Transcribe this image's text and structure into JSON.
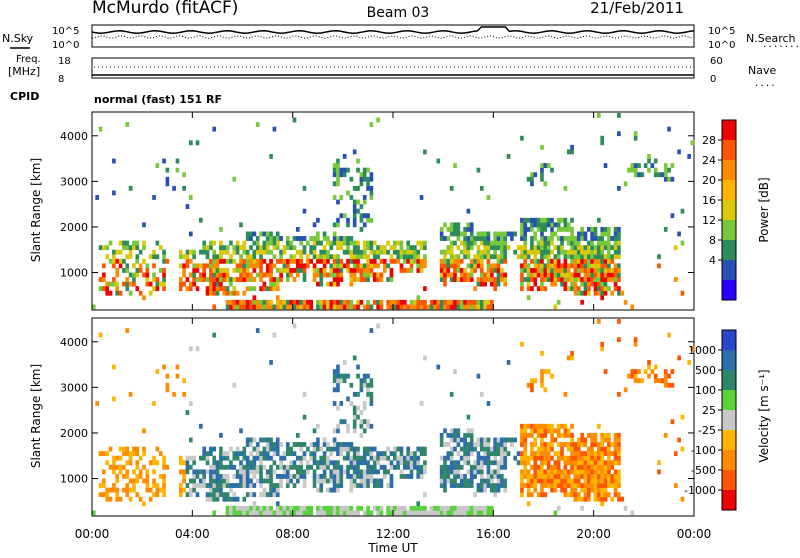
{
  "header": {
    "station": "McMurdo (fitACF)",
    "beam": "Beam 03",
    "date": "21/Feb/2011"
  },
  "top_panel": {
    "n_sky_label": "N.Sky",
    "n_search_label": "N.Search",
    "n_search_legend": ".......",
    "y_ticks_left": [
      "10^5",
      "10^0"
    ],
    "y_ticks_right": [
      "10^5",
      "10^0"
    ]
  },
  "freq_panel": {
    "label_line1": "Freq.",
    "label_line2": "[MHz]",
    "nave_label": "Nave",
    "nave_legend": "....",
    "y_ticks_left": [
      "18",
      "8"
    ],
    "y_ticks_right": [
      "60",
      "0"
    ]
  },
  "cpid_panel": {
    "label": "CPID",
    "program": "normal (fast) 151 RF"
  },
  "chart_data": [
    {
      "type": "heatmap",
      "parameter": "power",
      "ylabel": "Slant Range [km]",
      "y_ticks": [
        "4000",
        "3000",
        "2000",
        "1000"
      ],
      "ylim": [
        200,
        4500
      ],
      "colorbar": {
        "label": "Power [dB]",
        "ticks": [
          "28",
          "24",
          "20",
          "16",
          "12",
          "8",
          "4"
        ],
        "colors": [
          "#ee0000",
          "#ff5500",
          "#ff8c00",
          "#ffb400",
          "#dcc80a",
          "#78c83c",
          "#2e8c5a",
          "#2850b4",
          "#2800ff"
        ]
      }
    },
    {
      "type": "heatmap",
      "parameter": "velocity",
      "ylabel": "Slant Range [km]",
      "y_ticks": [
        "4000",
        "3000",
        "2000",
        "1000"
      ],
      "ylim": [
        200,
        4500
      ],
      "colorbar": {
        "label": "Velocity [m s⁻¹]",
        "ticks": [
          "1000",
          "500",
          "100",
          "25",
          "-25",
          "-100",
          "-500",
          "-1000"
        ],
        "colors": [
          "#2846c8",
          "#2d6eaa",
          "#30866a",
          "#5ad23c",
          "#c8c8c8",
          "#ffb400",
          "#ff8c00",
          "#ff5500",
          "#ee0000"
        ]
      }
    }
  ],
  "time_axis": {
    "label": "Time UT",
    "ticks": [
      "00:00",
      "04:00",
      "08:00",
      "12:00",
      "16:00",
      "20:00",
      "00:00"
    ]
  }
}
